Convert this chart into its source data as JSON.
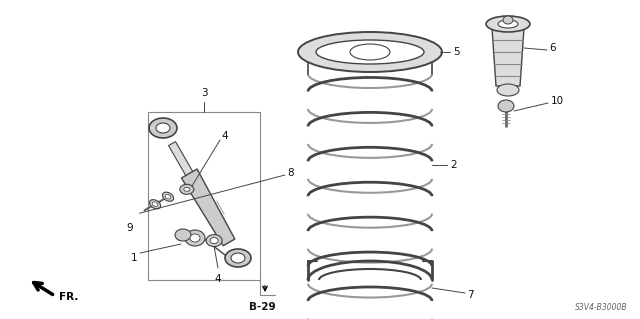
{
  "bg_color": "#ffffff",
  "line_color": "#444444",
  "gray_fill": "#cccccc",
  "gray_dark": "#888888",
  "part_number_text": "S3V4-B3000B",
  "page_ref": "B-29",
  "fr_label": "FR."
}
